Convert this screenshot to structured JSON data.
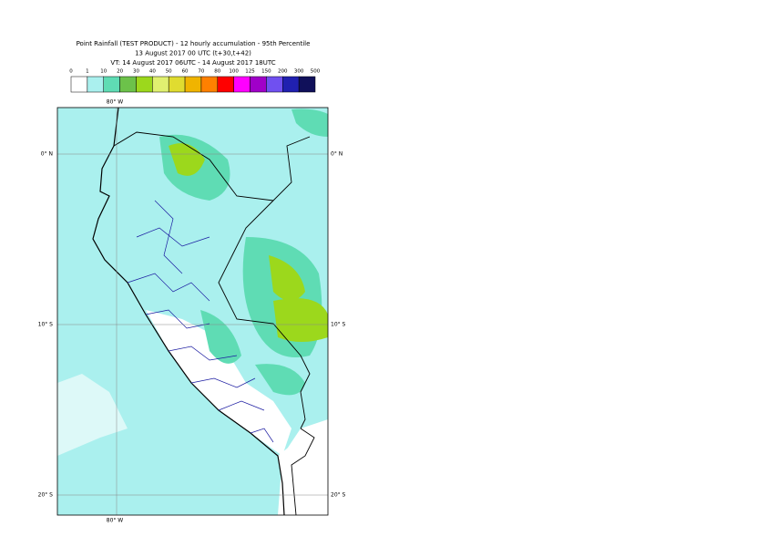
{
  "header": {
    "lines": [
      "Point Rainfall (TEST PRODUCT) - 12 hourly accumulation - 95th Percentile",
      "13 August 2017 00 UTC (t+30,t+42)",
      "VT: 14 August 2017 06UTC - 14 August 2017 18UTC"
    ]
  },
  "legend": {
    "labels": [
      "0",
      "1",
      "10",
      "20",
      "30",
      "40",
      "50",
      "60",
      "70",
      "80",
      "100",
      "125",
      "150",
      "200",
      "300",
      "500"
    ],
    "colors": [
      "#ffffff",
      "#aaf0ee",
      "#5fdcb4",
      "#6cc24a",
      "#9cd81c",
      "#e0f070",
      "#e0dc30",
      "#f0b400",
      "#ff8000",
      "#ff0000",
      "#ff00ff",
      "#a000c8",
      "#7050f0",
      "#2020b0",
      "#10105a"
    ]
  },
  "map": {
    "top_lon_label": "80° W",
    "bottom_lon_label": "80° W",
    "lat_labels": [
      "0° N",
      "10° S",
      "20° S"
    ]
  }
}
